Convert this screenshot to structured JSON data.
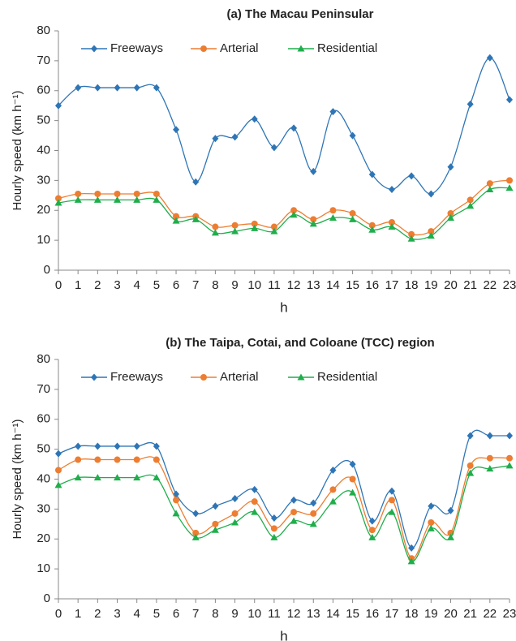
{
  "chart_data": [
    {
      "type": "line",
      "title": "(a) The Macau Peninsular",
      "x_label": "h",
      "y_label": "Hourly speed (km h⁻¹)",
      "x": [
        0,
        1,
        2,
        3,
        4,
        5,
        6,
        7,
        8,
        9,
        10,
        11,
        12,
        13,
        14,
        15,
        16,
        17,
        18,
        19,
        20,
        21,
        22,
        23
      ],
      "xlim": [
        0,
        23
      ],
      "xticks": [
        0,
        1,
        2,
        3,
        4,
        5,
        6,
        7,
        8,
        9,
        10,
        11,
        12,
        13,
        14,
        15,
        16,
        17,
        18,
        19,
        20,
        21,
        22,
        23
      ],
      "ylim": [
        0,
        80
      ],
      "yticks": [
        0,
        10,
        20,
        30,
        40,
        50,
        60,
        70,
        80
      ],
      "legend": "top",
      "smooth": true,
      "series": [
        {
          "name": "Freeways",
          "color": "#2e75b6",
          "marker": "diamond",
          "values": [
            55,
            61,
            61,
            61,
            61,
            61,
            47,
            29.5,
            44,
            44.5,
            50.5,
            41,
            47.5,
            33,
            53,
            45,
            32,
            27,
            31.5,
            25.5,
            34.5,
            55.5,
            71,
            57
          ]
        },
        {
          "name": "Arterial",
          "color": "#ed7d31",
          "marker": "circle",
          "values": [
            24,
            25.5,
            25.5,
            25.5,
            25.5,
            25.5,
            18,
            18,
            14.5,
            15,
            15.5,
            14.5,
            20,
            17,
            20,
            19,
            15,
            16,
            12,
            13,
            19,
            23.5,
            29,
            30
          ]
        },
        {
          "name": "Residential",
          "color": "#1fae4b",
          "marker": "triangle",
          "values": [
            22.5,
            23.5,
            23.5,
            23.5,
            23.5,
            23.5,
            16.5,
            17,
            12.5,
            13,
            14,
            13,
            18.5,
            15.5,
            17.5,
            17,
            13.5,
            14.5,
            10.5,
            11.5,
            17.5,
            21.5,
            27,
            27.5
          ]
        }
      ]
    },
    {
      "type": "line",
      "title": "(b) The Taipa, Cotai, and Coloane (TCC) region",
      "x_label": "h",
      "y_label": "Hourly speed (km h⁻¹)",
      "x": [
        0,
        1,
        2,
        3,
        4,
        5,
        6,
        7,
        8,
        9,
        10,
        11,
        12,
        13,
        14,
        15,
        16,
        17,
        18,
        19,
        20,
        21,
        22,
        23
      ],
      "xlim": [
        0,
        23
      ],
      "xticks": [
        0,
        1,
        2,
        3,
        4,
        5,
        6,
        7,
        8,
        9,
        10,
        11,
        12,
        13,
        14,
        15,
        16,
        17,
        18,
        19,
        20,
        21,
        22,
        23
      ],
      "ylim": [
        0,
        80
      ],
      "yticks": [
        0,
        10,
        20,
        30,
        40,
        50,
        60,
        70,
        80
      ],
      "legend": "top",
      "smooth": true,
      "series": [
        {
          "name": "Freeways",
          "color": "#2e75b6",
          "marker": "diamond",
          "values": [
            48.5,
            51,
            51,
            51,
            51,
            51,
            35,
            28.5,
            31,
            33.5,
            36.5,
            27,
            33,
            32,
            43,
            45,
            26,
            36,
            17,
            31,
            29.5,
            54.5,
            54.5,
            54.5
          ]
        },
        {
          "name": "Arterial",
          "color": "#ed7d31",
          "marker": "circle",
          "values": [
            43,
            46.5,
            46.5,
            46.5,
            46.5,
            46.5,
            33,
            22,
            25,
            28.5,
            32.5,
            23.5,
            29,
            28.5,
            36.5,
            40,
            23,
            33,
            13.5,
            25.5,
            22,
            44.5,
            47,
            47
          ]
        },
        {
          "name": "Residential",
          "color": "#1fae4b",
          "marker": "triangle",
          "values": [
            38,
            40.5,
            40.5,
            40.5,
            40.5,
            40.5,
            28.5,
            20.5,
            23,
            25.5,
            29,
            20.5,
            26,
            25,
            32.5,
            35.5,
            20.5,
            29,
            12.5,
            23.5,
            20.5,
            42,
            43.5,
            44.5
          ]
        }
      ]
    }
  ]
}
